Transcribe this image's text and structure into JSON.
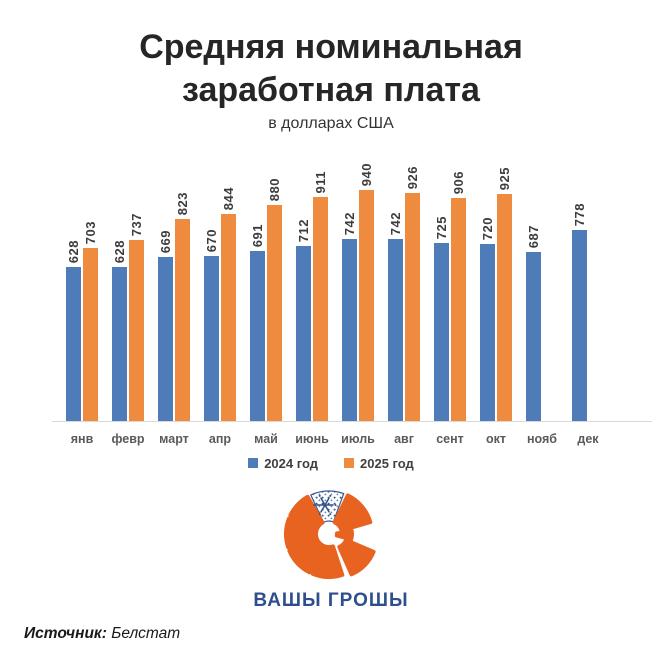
{
  "title": {
    "line1": "Средняя номинальная",
    "line2": "заработная плата",
    "subtitle": "в долларах США"
  },
  "chart_data": {
    "type": "bar",
    "title": "Средняя номинальная заработная плата",
    "subtitle": "в долларах США",
    "categories": [
      "янв",
      "февр",
      "март",
      "апр",
      "май",
      "июнь",
      "июль",
      "авг",
      "сент",
      "окт",
      "нояб",
      "дек"
    ],
    "series": [
      {
        "name": "2024 год",
        "color": "#4d7cb8",
        "values": [
          628,
          628,
          669,
          670,
          691,
          712,
          742,
          742,
          725,
          720,
          687,
          778
        ]
      },
      {
        "name": "2025 год",
        "color": "#ee8b3e",
        "values": [
          703,
          737,
          823,
          844,
          880,
          911,
          940,
          926,
          906,
          925,
          null,
          null
        ]
      }
    ],
    "ylim": [
      0,
      1000
    ],
    "grid": false,
    "y_axis_visible": false,
    "bar_labels": "rotated-90-above-bars",
    "legend_position": "bottom"
  },
  "legend": [
    {
      "label": "2024 год",
      "color": "#4d7cb8"
    },
    {
      "label": "2025 год",
      "color": "#ee8b3e"
    }
  ],
  "logo": {
    "text": "ВАШЫ ГРОШЫ",
    "icon": "sliced-orange-pie-with-snowflake-segment",
    "orange": "#e96320",
    "blue": "#2e4f8e"
  },
  "source": {
    "label": "Источник:",
    "value": "Белстат"
  }
}
